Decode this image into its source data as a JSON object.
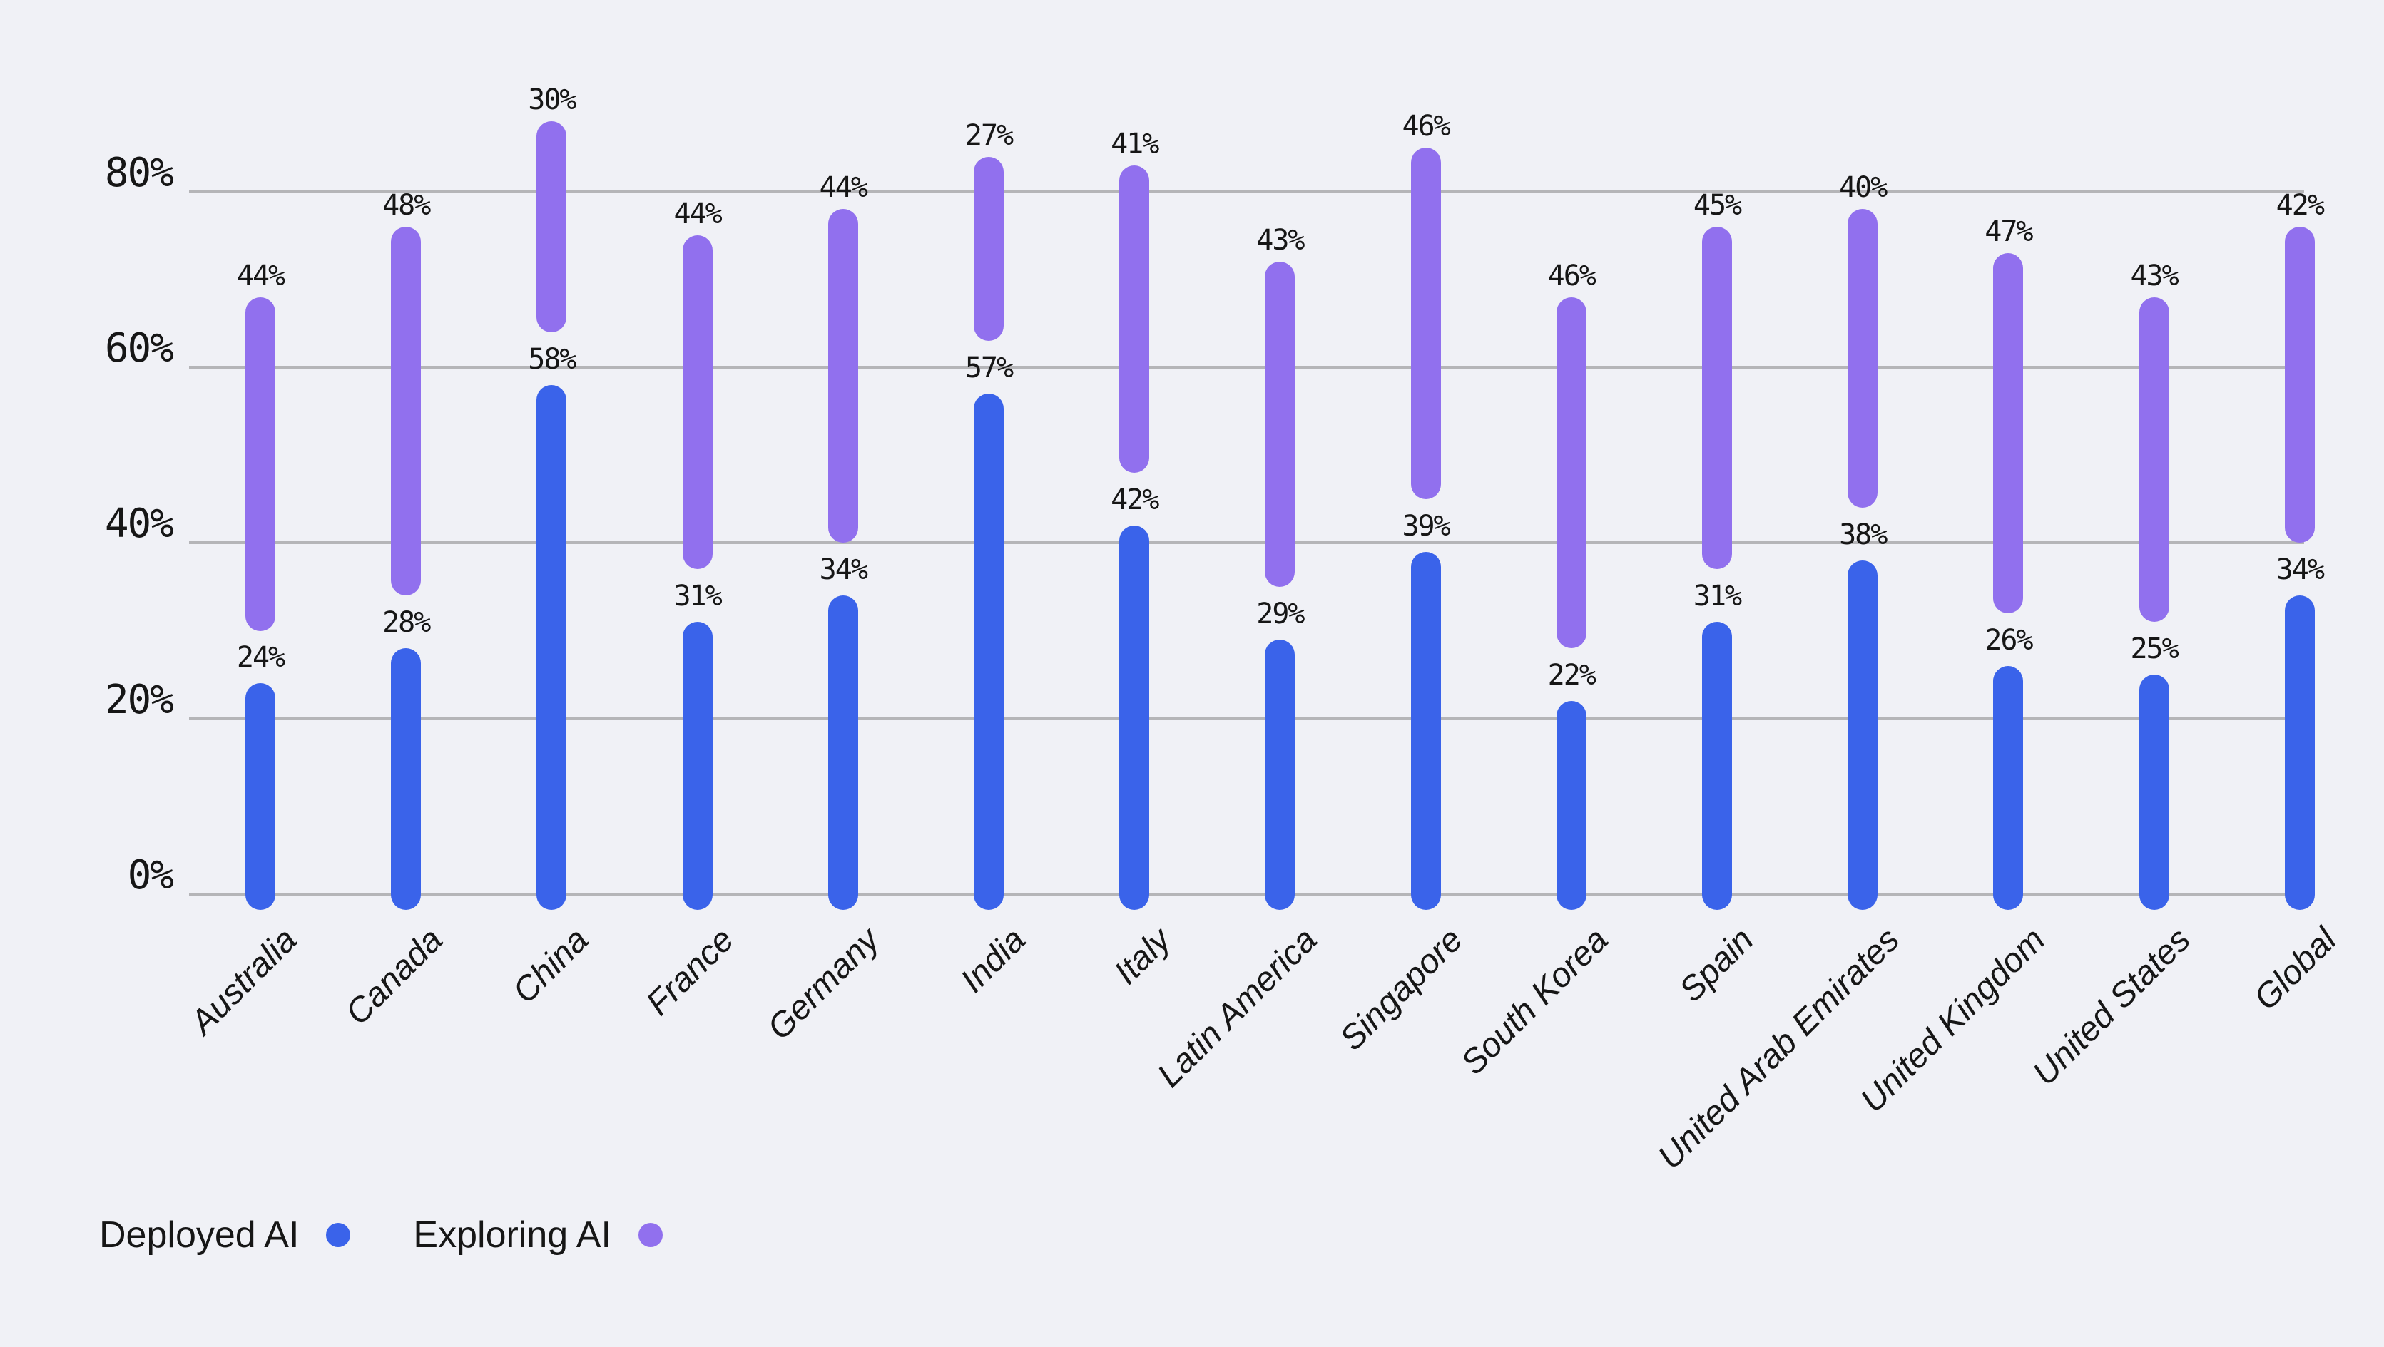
{
  "chart_data": {
    "type": "bar",
    "subtype": "stacked-floating-capsule",
    "title": "",
    "xlabel": "",
    "ylabel": "",
    "categories": [
      "Australia",
      "Canada",
      "China",
      "France",
      "Germany",
      "India",
      "Italy",
      "Latin America",
      "Singapore",
      "South Korea",
      "Spain",
      "United Arab Emirates",
      "United Kingdom",
      "United States",
      "Global"
    ],
    "series": [
      {
        "name": "Deployed AI",
        "color": "#3a63ea",
        "values": [
          24,
          28,
          58,
          31,
          34,
          57,
          42,
          29,
          39,
          22,
          31,
          38,
          26,
          25,
          34
        ]
      },
      {
        "name": "Exploring AI",
        "color": "#9170ee",
        "values": [
          44,
          48,
          30,
          44,
          44,
          27,
          41,
          43,
          46,
          46,
          45,
          40,
          47,
          43,
          42
        ]
      }
    ],
    "value_label_format": "{value}%",
    "y_axis": {
      "tick_labels": [
        "0%",
        "20%",
        "40%",
        "60%",
        "80%"
      ],
      "tick_values": [
        0,
        20,
        40,
        60,
        80
      ],
      "range_shown": [
        0,
        88
      ],
      "grid": true
    },
    "legend_position": "bottom-left",
    "colors": {
      "background": "#f0f1f6",
      "gridline": "#b5b5b8",
      "text": "#161616"
    }
  }
}
